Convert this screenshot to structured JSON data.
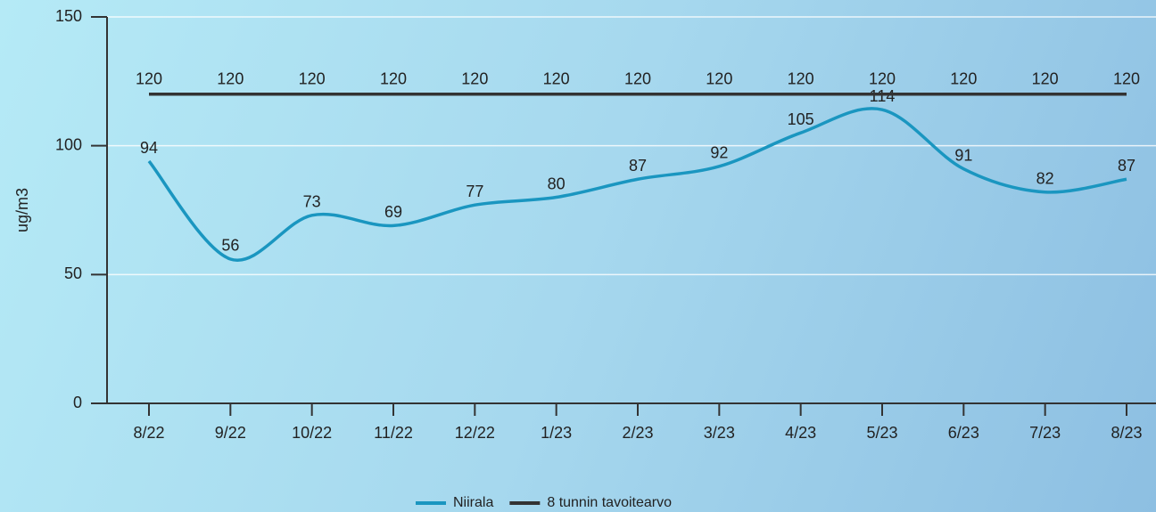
{
  "chart_data": {
    "type": "line",
    "y_label": "ug/m3",
    "categories": [
      "8/22",
      "9/22",
      "10/22",
      "11/22",
      "12/22",
      "1/23",
      "2/23",
      "3/23",
      "4/23",
      "5/23",
      "6/23",
      "7/23",
      "8/23"
    ],
    "series": [
      {
        "name": "Niirala",
        "color": "#1a96c0",
        "values": [
          94,
          56,
          73,
          69,
          77,
          80,
          87,
          92,
          105,
          114,
          91,
          82,
          87
        ]
      },
      {
        "name": "8 tunnin tavoitearvo",
        "color": "#333333",
        "values": [
          120,
          120,
          120,
          120,
          120,
          120,
          120,
          120,
          120,
          120,
          120,
          120,
          120
        ]
      }
    ],
    "ylim": [
      0,
      150
    ],
    "yticks": [
      0,
      50,
      100,
      150
    ],
    "grid": true,
    "legend": "bottom"
  }
}
